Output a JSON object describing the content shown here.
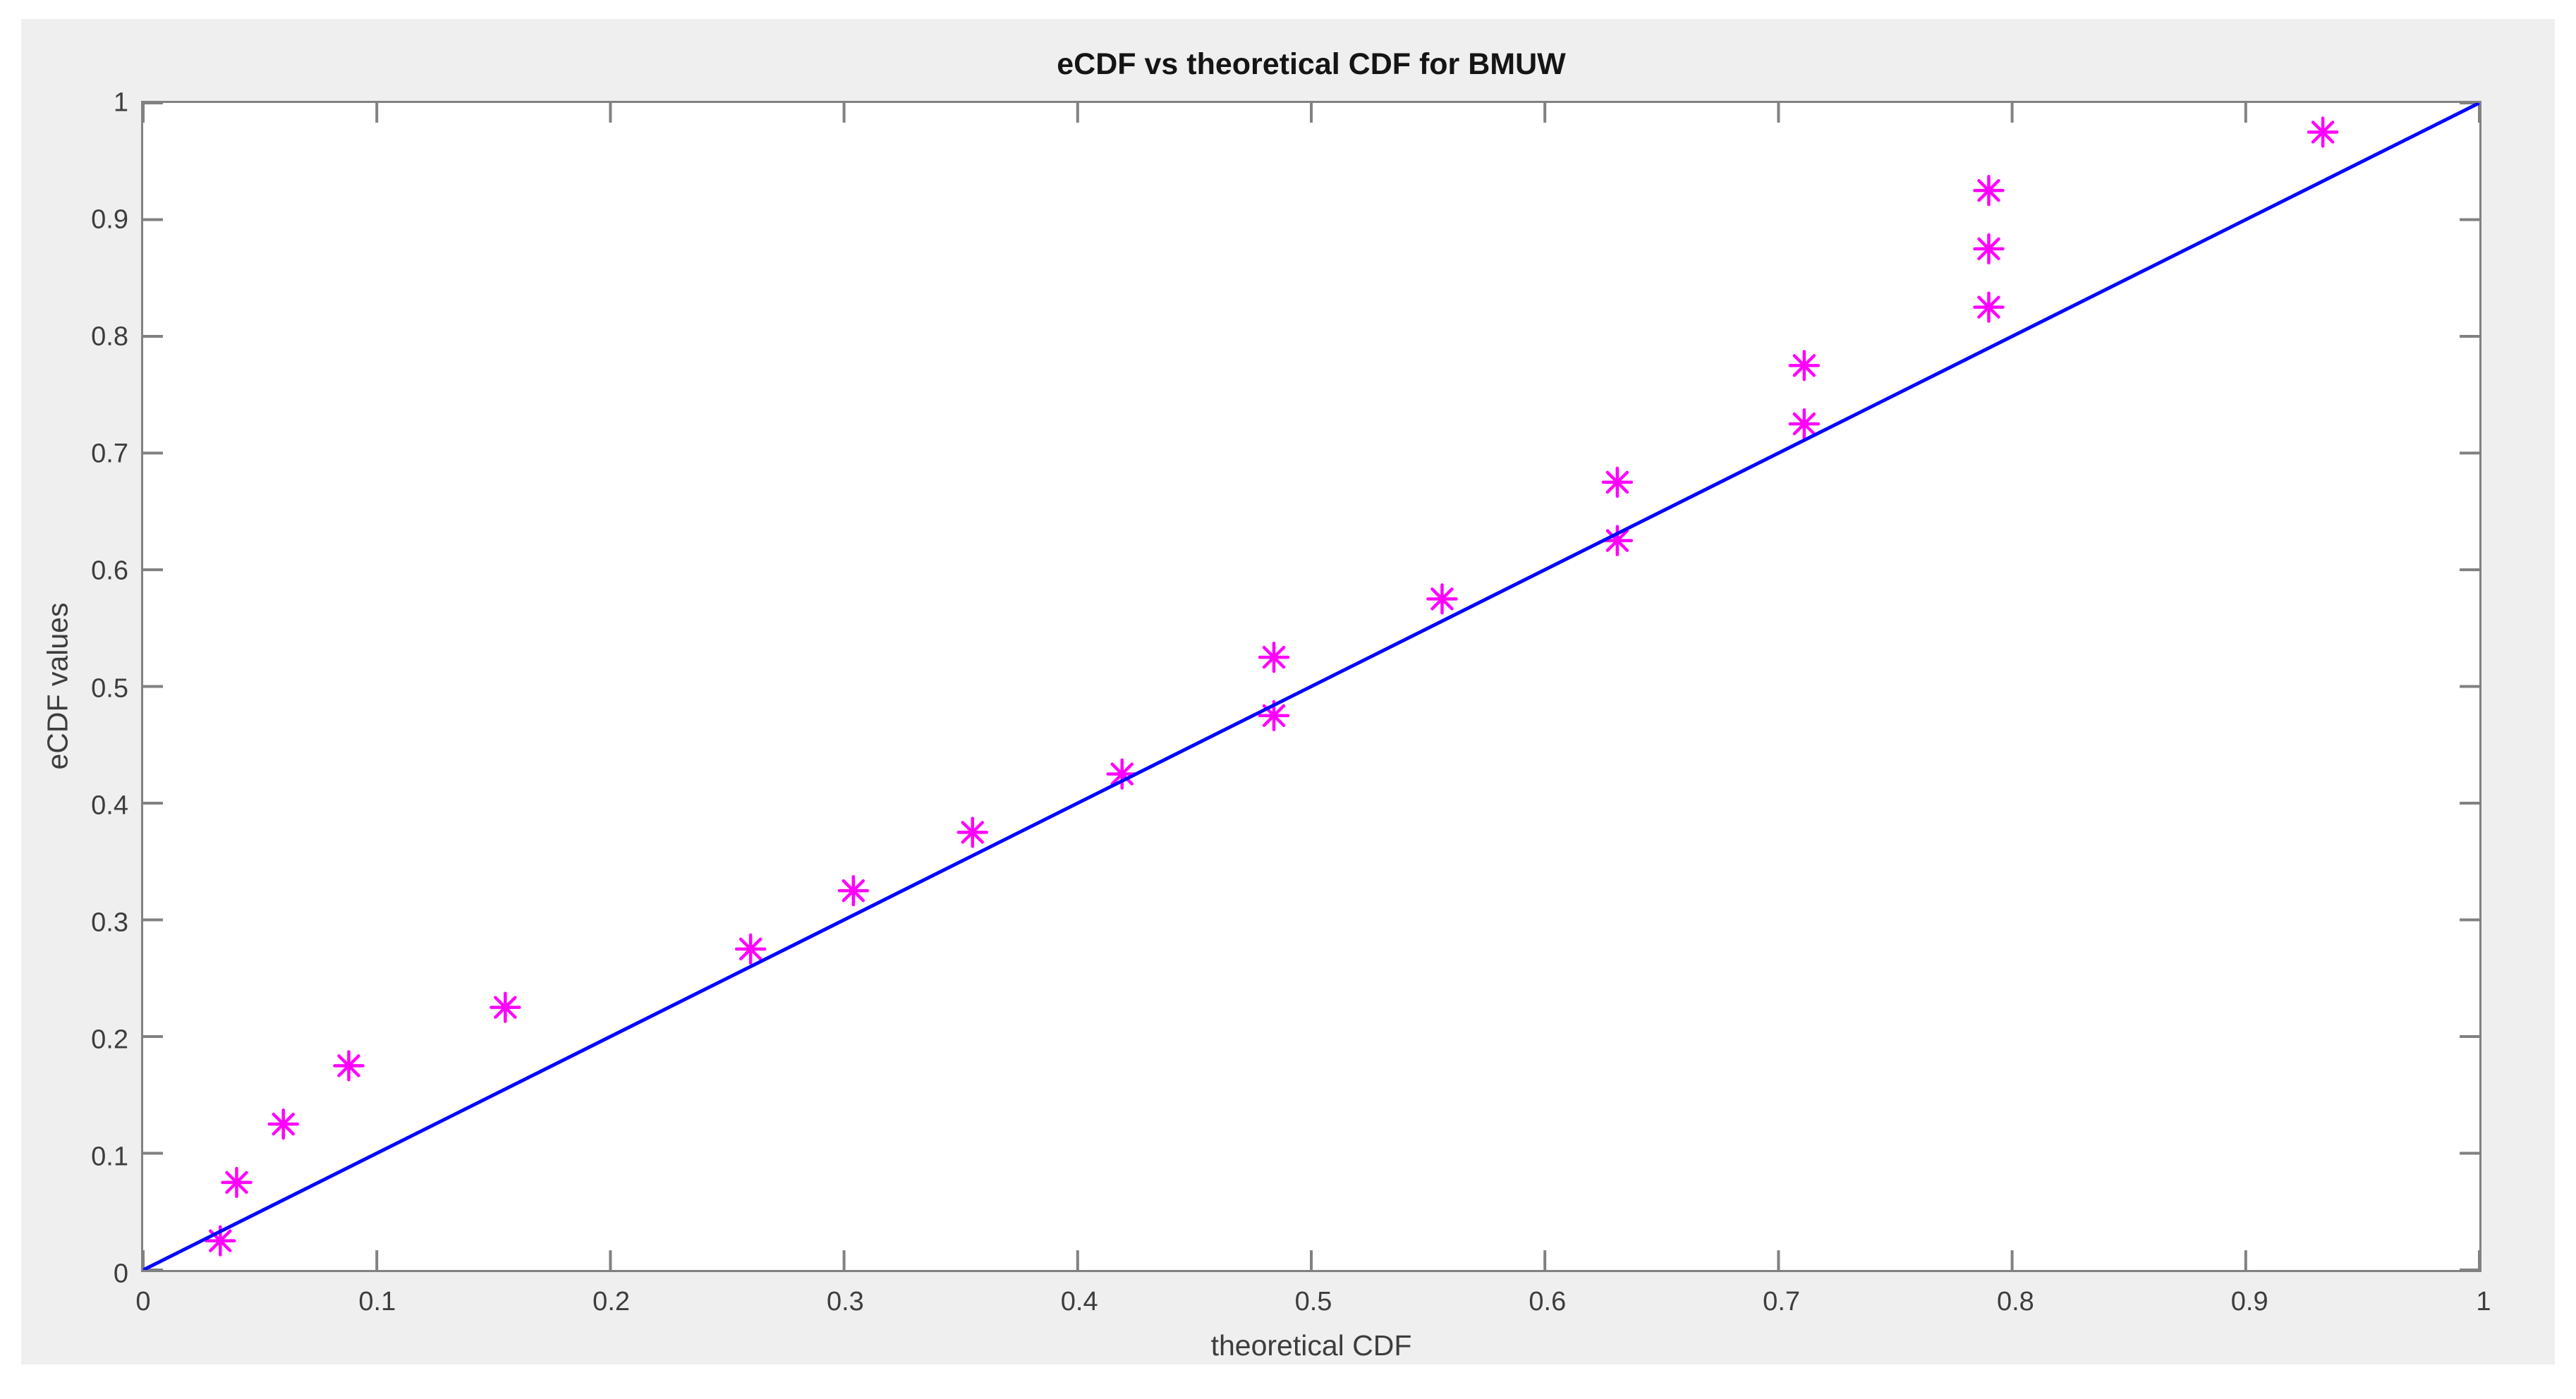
{
  "title": "eCDF vs theoretical CDF for BMUW",
  "x_axis": {
    "label": "theoretical CDF",
    "ticks": [
      0,
      0.1,
      0.2,
      0.3,
      0.4,
      0.5,
      0.6,
      0.7,
      0.8,
      0.9,
      1
    ],
    "tick_labels": [
      "0",
      "0.1",
      "0.2",
      "0.3",
      "0.4",
      "0.5",
      "0.6",
      "0.7",
      "0.8",
      "0.9",
      "1"
    ]
  },
  "y_axis": {
    "label": "eCDF values",
    "ticks": [
      0,
      0.1,
      0.2,
      0.3,
      0.4,
      0.5,
      0.6,
      0.7,
      0.8,
      0.9,
      1
    ],
    "tick_labels": [
      "0",
      "0.1",
      "0.2",
      "0.3",
      "0.4",
      "0.5",
      "0.6",
      "0.7",
      "0.8",
      "0.9",
      "1"
    ]
  },
  "chart_data": {
    "type": "scatter",
    "title": "eCDF vs theoretical CDF for BMUW",
    "xlabel": "theoretical CDF",
    "ylabel": "eCDF values",
    "xlim": [
      0,
      1
    ],
    "ylim": [
      0,
      1
    ],
    "grid": false,
    "legend": false,
    "series": [
      {
        "name": "empirical CDF points",
        "plot_type": "scatter",
        "marker": "asterisk",
        "color": "#ff00ff",
        "x": [
          0.033,
          0.04,
          0.06,
          0.088,
          0.155,
          0.26,
          0.304,
          0.355,
          0.419,
          0.484,
          0.484,
          0.556,
          0.631,
          0.631,
          0.711,
          0.711,
          0.79,
          0.79,
          0.79,
          0.933
        ],
        "y": [
          0.025,
          0.075,
          0.125,
          0.175,
          0.225,
          0.275,
          0.325,
          0.375,
          0.425,
          0.475,
          0.525,
          0.575,
          0.625,
          0.675,
          0.725,
          0.775,
          0.825,
          0.875,
          0.925,
          0.975
        ]
      },
      {
        "name": "reference line y = x",
        "plot_type": "line",
        "color": "#0505ff",
        "x": [
          0,
          1
        ],
        "y": [
          0,
          1
        ]
      }
    ]
  },
  "colors": {
    "figure_background": "#efefef",
    "plot_background": "#ffffff",
    "axis": "#818181",
    "tick_label": "#3d3d3d",
    "title": "#151515",
    "marker": "#ff00ff",
    "line": "#0505ff"
  }
}
